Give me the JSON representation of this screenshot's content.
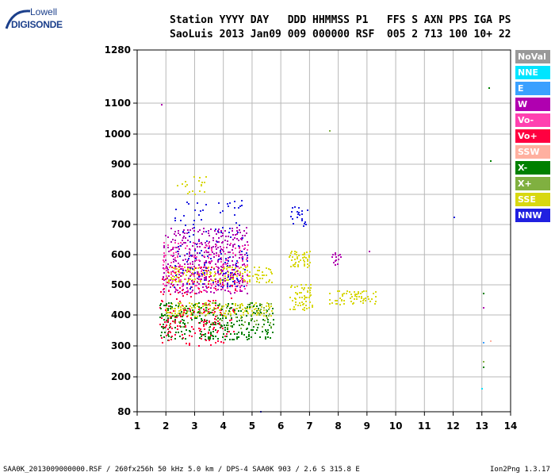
{
  "logo": {
    "top": "Lowell",
    "bottom": "DIGISONDE"
  },
  "header": {
    "row1": "Station YYYY DAY   DDD HHMMSS P1   FFS S AXN PPS IGA PS",
    "row2": "SaoLuis 2013 Jan09 009 000000 RSF  005 2 713 100 10+ 22"
  },
  "footer": {
    "left": "SAA0K_2013009000000.RSF / 260fx256h 50 kHz 5.0 km / DPS-4 SAA0K 903 / 2.6 S 315.8 E",
    "right": "Ion2Png 1.3.17"
  },
  "legend": [
    {
      "label": "NoVal",
      "color": "#999999"
    },
    {
      "label": "NNE",
      "color": "#00e5ff"
    },
    {
      "label": "E",
      "color": "#3aa0ff"
    },
    {
      "label": "W",
      "color": "#b000b0"
    },
    {
      "label": "Vo-",
      "color": "#ff40b0"
    },
    {
      "label": "Vo+",
      "color": "#ff0040"
    },
    {
      "label": "SSW",
      "color": "#ffb0a0"
    },
    {
      "label": "X-",
      "color": "#008000"
    },
    {
      "label": "X+",
      "color": "#80b040"
    },
    {
      "label": "SSE",
      "color": "#d8d810"
    },
    {
      "label": "NNW",
      "color": "#2020e0"
    }
  ],
  "chart_data": {
    "type": "scatter",
    "x_ticks": [
      "1",
      "2",
      "3",
      "4",
      "5",
      "6",
      "7",
      "8",
      "9",
      "10",
      "11",
      "12",
      "13",
      "14"
    ],
    "y_ticks": [
      "80",
      "200",
      "300",
      "400",
      "500",
      "600",
      "700",
      "800",
      "900",
      "1000",
      "1100",
      "1280"
    ],
    "xlim": [
      1,
      14
    ],
    "ylim": [
      80,
      1280
    ],
    "y_scale": "nonlinear (ionogram virtual height)",
    "grid": true,
    "legend_position": "right",
    "clusters": [
      {
        "series": "SSE",
        "x": [
          2.0,
          5.7
        ],
        "y": [
          510,
          560
        ],
        "density": 0.55
      },
      {
        "series": "SSE",
        "x": [
          2.0,
          5.7
        ],
        "y": [
          400,
          440
        ],
        "density": 0.55
      },
      {
        "series": "SSE",
        "x": [
          6.3,
          7.0
        ],
        "y": [
          560,
          610
        ],
        "density": 0.7
      },
      {
        "series": "SSE",
        "x": [
          6.3,
          7.1
        ],
        "y": [
          420,
          500
        ],
        "density": 0.5
      },
      {
        "series": "SSE",
        "x": [
          7.7,
          9.3
        ],
        "y": [
          440,
          480
        ],
        "density": 0.55
      },
      {
        "series": "SSE",
        "x": [
          2.4,
          3.4
        ],
        "y": [
          800,
          860
        ],
        "density": 0.2
      },
      {
        "series": "W",
        "x": [
          1.9,
          4.8
        ],
        "y": [
          470,
          690
        ],
        "density": 0.35
      },
      {
        "series": "Vo-",
        "x": [
          1.9,
          4.8
        ],
        "y": [
          480,
          640
        ],
        "density": 0.2
      },
      {
        "series": "Vo+",
        "x": [
          1.8,
          4.4
        ],
        "y": [
          330,
          560
        ],
        "density": 0.12
      },
      {
        "series": "X-",
        "x": [
          1.8,
          5.7
        ],
        "y": [
          320,
          440
        ],
        "density": 0.28
      },
      {
        "series": "X+",
        "x": [
          2.0,
          5.7
        ],
        "y": [
          360,
          440
        ],
        "density": 0.2
      },
      {
        "series": "NNW",
        "x": [
          2.3,
          4.8
        ],
        "y": [
          480,
          780
        ],
        "density": 0.1
      },
      {
        "series": "NNW",
        "x": [
          6.3,
          6.9
        ],
        "y": [
          690,
          760
        ],
        "density": 0.25
      },
      {
        "series": "W",
        "x": [
          7.8,
          8.1
        ],
        "y": [
          570,
          610
        ],
        "density": 0.5
      },
      {
        "series": "Vo+",
        "x": [
          1.8,
          4.0
        ],
        "y": [
          300,
          420
        ],
        "density": 0.15
      }
    ],
    "isolated_points": [
      {
        "series": "W",
        "x": 1.85,
        "y": 1095
      },
      {
        "series": "NNW",
        "x": 12.05,
        "y": 725
      },
      {
        "series": "X-",
        "x": 13.25,
        "y": 1150
      },
      {
        "series": "X-",
        "x": 13.3,
        "y": 910
      },
      {
        "series": "X-",
        "x": 13.05,
        "y": 470
      },
      {
        "series": "W",
        "x": 13.05,
        "y": 425
      },
      {
        "series": "E",
        "x": 13.05,
        "y": 310
      },
      {
        "series": "X+",
        "x": 13.05,
        "y": 250
      },
      {
        "series": "X-",
        "x": 13.05,
        "y": 230
      },
      {
        "series": "NNE",
        "x": 13.0,
        "y": 160
      },
      {
        "series": "SSW",
        "x": 13.3,
        "y": 315
      },
      {
        "series": "W",
        "x": 9.1,
        "y": 610
      },
      {
        "series": "X+",
        "x": 7.7,
        "y": 1010
      },
      {
        "series": "NNW",
        "x": 5.3,
        "y": 80
      }
    ]
  }
}
